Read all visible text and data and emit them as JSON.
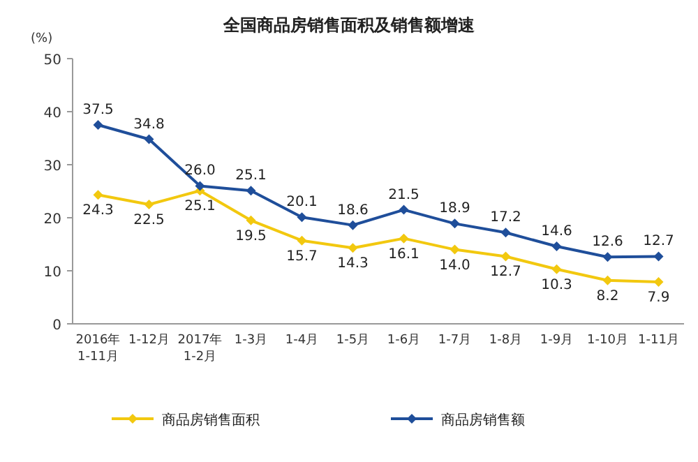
{
  "chart_data": {
    "type": "line",
    "title": "全国商品房销售面积及销售额增速",
    "ylabel": "(%)",
    "categories": [
      "2016年\n1-11月",
      "1-12月",
      "2017年\n1-2月",
      "1-3月",
      "1-4月",
      "1-5月",
      "1-6月",
      "1-7月",
      "1-8月",
      "1-9月",
      "1-10月",
      "1-11月"
    ],
    "series": [
      {
        "name": "商品房销售面积",
        "color": "#f2c80f",
        "values": [
          24.3,
          22.5,
          25.1,
          19.5,
          15.7,
          14.3,
          16.1,
          14.0,
          12.7,
          10.3,
          8.2,
          7.9
        ],
        "value_labels": [
          "24.3",
          "22.5",
          "25.1",
          "19.5",
          "15.7",
          "14.3",
          "16.1",
          "14.0",
          "12.7",
          "10.3",
          "8.2",
          "7.9"
        ]
      },
      {
        "name": "商品房销售额",
        "color": "#1f4e9a",
        "values": [
          37.5,
          34.8,
          26.0,
          25.1,
          20.1,
          18.6,
          21.5,
          18.9,
          17.2,
          14.6,
          12.6,
          12.7
        ],
        "value_labels": [
          "37.5",
          "34.8",
          "26.0",
          "25.1",
          "20.1",
          "18.6",
          "21.5",
          "18.9",
          "17.2",
          "14.6",
          "12.6",
          "12.7"
        ]
      }
    ],
    "ylim": [
      0,
      50
    ],
    "yticks": [
      0,
      10,
      20,
      30,
      40,
      50
    ],
    "grid": false,
    "legend": "bottom",
    "marker": "diamond",
    "line_style": "solid"
  }
}
